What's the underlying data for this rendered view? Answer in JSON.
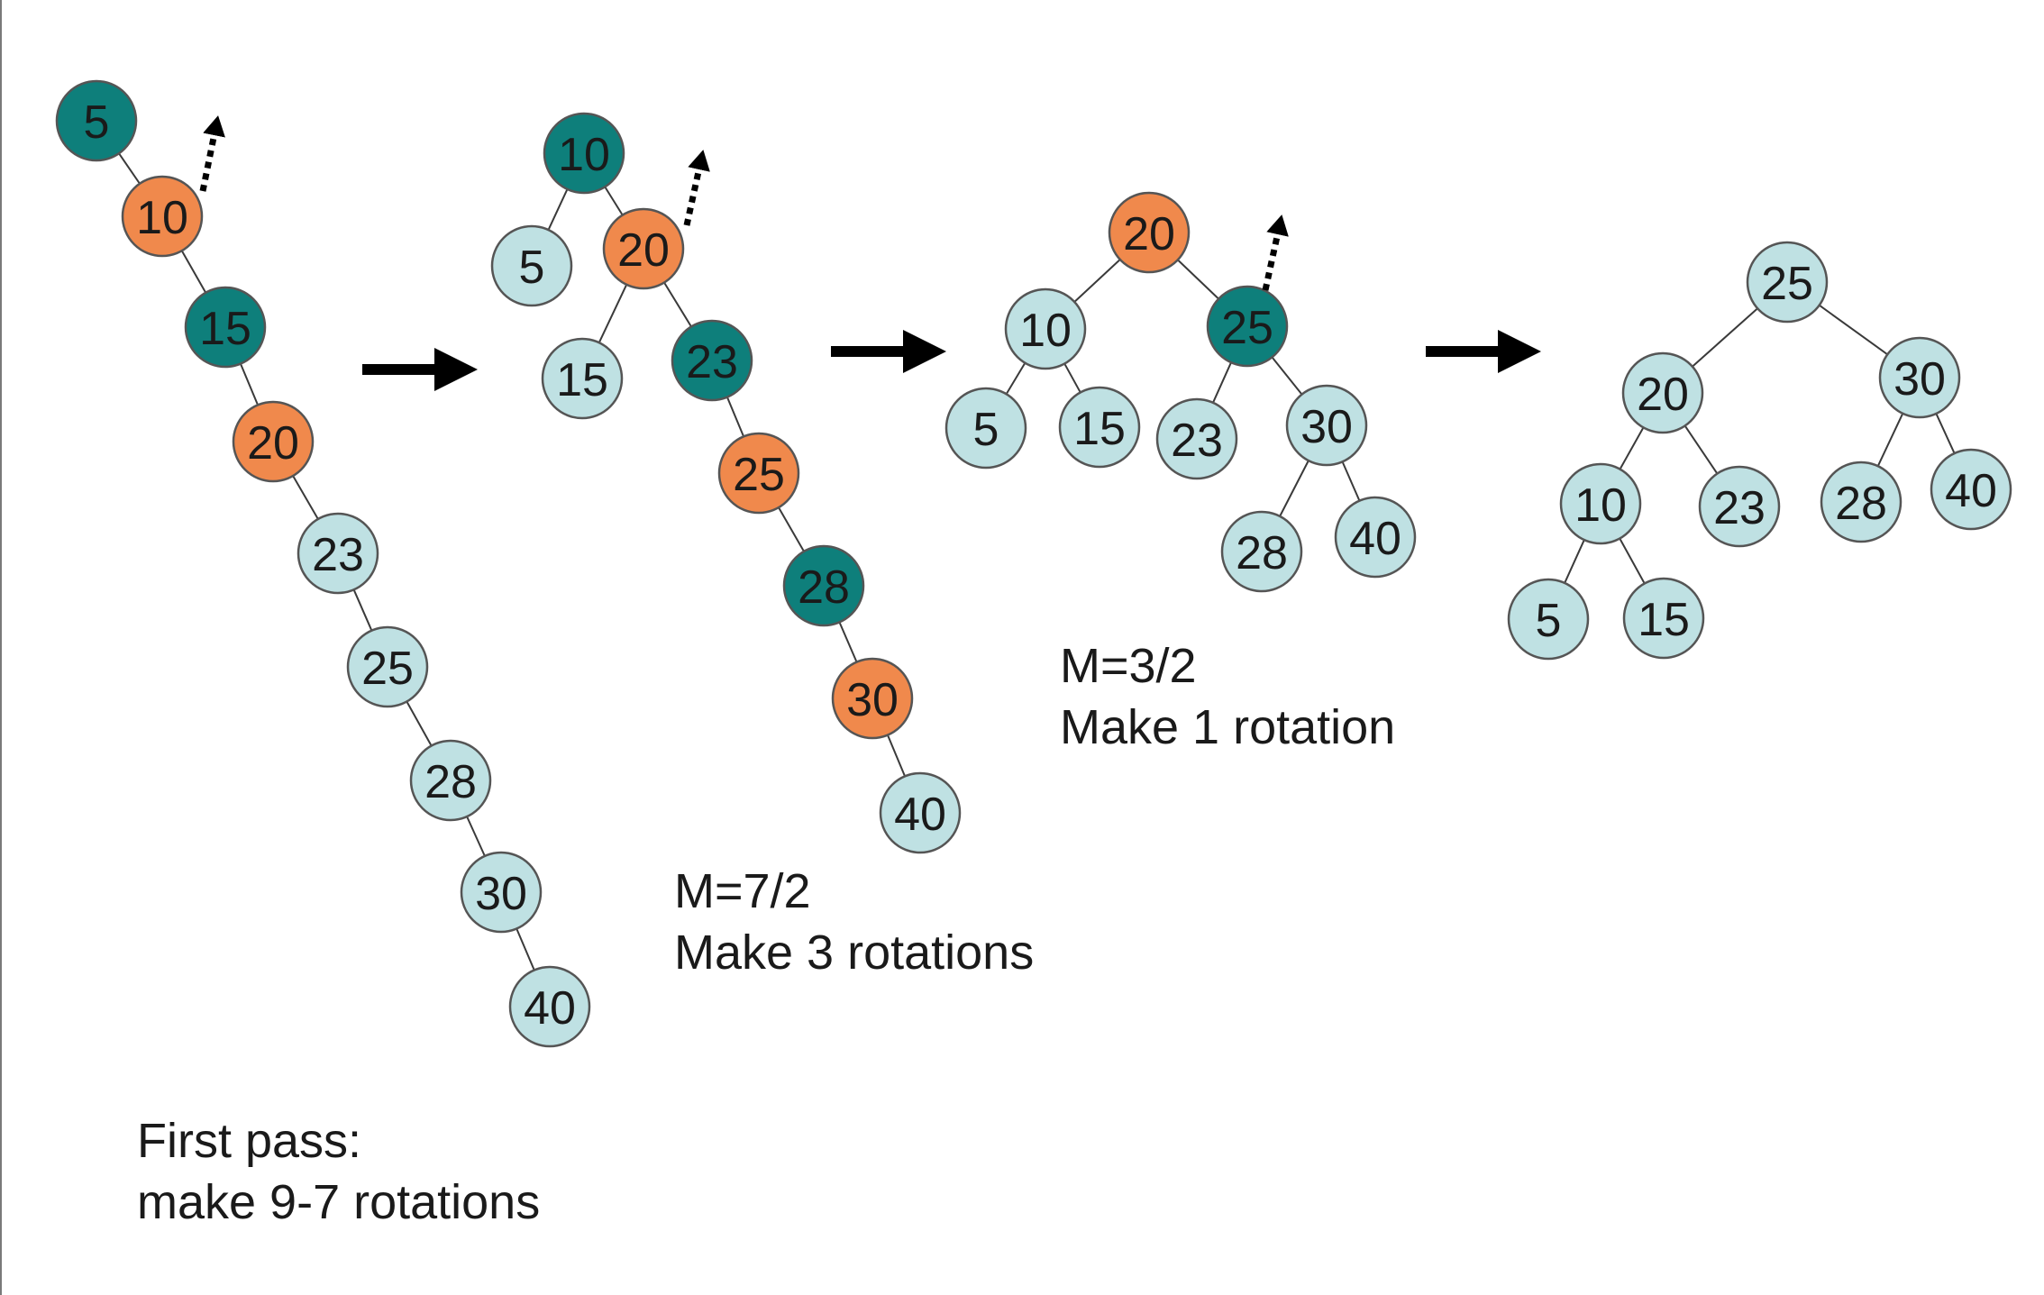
{
  "colors": {
    "dark": "#0e7f7b",
    "orange": "#f0894c",
    "light": "#bfe1e3"
  },
  "stages": [
    {
      "nodes": [
        {
          "value": "5",
          "color": "dark"
        },
        {
          "value": "10",
          "color": "orange"
        },
        {
          "value": "15",
          "color": "dark"
        },
        {
          "value": "20",
          "color": "orange"
        },
        {
          "value": "23",
          "color": "light"
        },
        {
          "value": "25",
          "color": "light"
        },
        {
          "value": "28",
          "color": "light"
        },
        {
          "value": "30",
          "color": "light"
        },
        {
          "value": "40",
          "color": "light"
        }
      ],
      "edges": [
        [
          "5",
          "10"
        ],
        [
          "10",
          "15"
        ],
        [
          "15",
          "20"
        ],
        [
          "20",
          "23"
        ],
        [
          "23",
          "25"
        ],
        [
          "25",
          "28"
        ],
        [
          "28",
          "30"
        ],
        [
          "30",
          "40"
        ]
      ],
      "caption": [
        "First pass:",
        "make 9-7 rotations"
      ]
    },
    {
      "nodes": [
        {
          "value": "10",
          "color": "dark"
        },
        {
          "value": "5",
          "color": "light"
        },
        {
          "value": "20",
          "color": "orange"
        },
        {
          "value": "15",
          "color": "light"
        },
        {
          "value": "23",
          "color": "dark"
        },
        {
          "value": "25",
          "color": "orange"
        },
        {
          "value": "28",
          "color": "dark"
        },
        {
          "value": "30",
          "color": "orange"
        },
        {
          "value": "40",
          "color": "light"
        }
      ],
      "edges": [
        [
          "10",
          "5"
        ],
        [
          "10",
          "20"
        ],
        [
          "20",
          "15"
        ],
        [
          "20",
          "23"
        ],
        [
          "23",
          "25"
        ],
        [
          "25",
          "28"
        ],
        [
          "28",
          "30"
        ],
        [
          "30",
          "40"
        ]
      ],
      "caption": [
        "M=7/2",
        "Make 3 rotations"
      ]
    },
    {
      "nodes": [
        {
          "value": "20",
          "color": "orange"
        },
        {
          "value": "10",
          "color": "light"
        },
        {
          "value": "25",
          "color": "dark"
        },
        {
          "value": "5",
          "color": "light"
        },
        {
          "value": "15",
          "color": "light"
        },
        {
          "value": "23",
          "color": "light"
        },
        {
          "value": "30",
          "color": "light"
        },
        {
          "value": "28",
          "color": "light"
        },
        {
          "value": "40",
          "color": "light"
        }
      ],
      "edges": [
        [
          "20",
          "10"
        ],
        [
          "20",
          "25"
        ],
        [
          "10",
          "5"
        ],
        [
          "10",
          "15"
        ],
        [
          "25",
          "23"
        ],
        [
          "25",
          "30"
        ],
        [
          "30",
          "28"
        ],
        [
          "30",
          "40"
        ]
      ],
      "caption": [
        "M=3/2",
        "Make 1 rotation"
      ]
    },
    {
      "nodes": [
        {
          "value": "25",
          "color": "light"
        },
        {
          "value": "20",
          "color": "light"
        },
        {
          "value": "30",
          "color": "light"
        },
        {
          "value": "10",
          "color": "light"
        },
        {
          "value": "23",
          "color": "light"
        },
        {
          "value": "28",
          "color": "light"
        },
        {
          "value": "40",
          "color": "light"
        },
        {
          "value": "5",
          "color": "light"
        },
        {
          "value": "15",
          "color": "light"
        }
      ],
      "edges": [
        [
          "25",
          "20"
        ],
        [
          "25",
          "30"
        ],
        [
          "20",
          "10"
        ],
        [
          "20",
          "23"
        ],
        [
          "30",
          "28"
        ],
        [
          "30",
          "40"
        ],
        [
          "10",
          "5"
        ],
        [
          "10",
          "15"
        ]
      ],
      "caption": []
    }
  ]
}
